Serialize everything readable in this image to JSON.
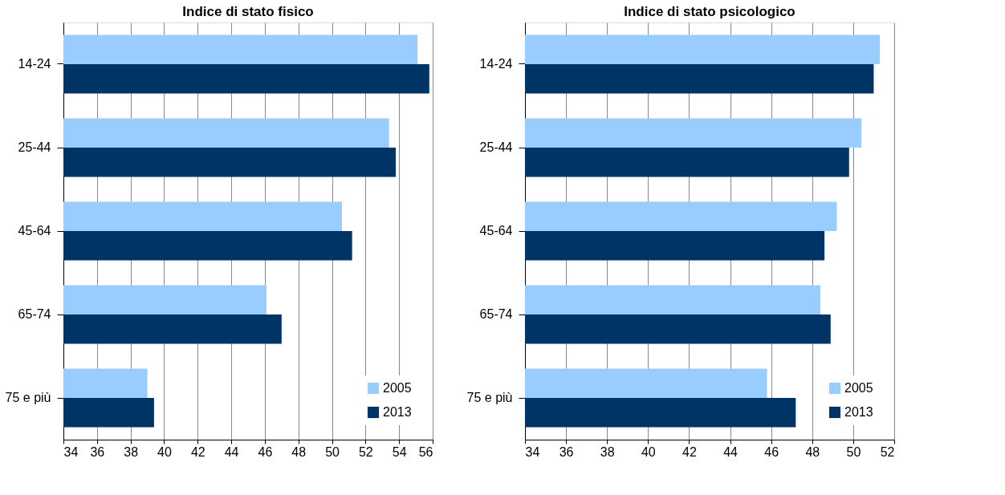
{
  "chart_data": [
    {
      "type": "bar",
      "orientation": "horizontal",
      "title": "Indice di stato fisico",
      "categories": [
        "14-24",
        "25-44",
        "45-64",
        "65-74",
        "75 e più"
      ],
      "series": [
        {
          "name": "2005",
          "color": "#99ccff",
          "values": [
            55.1,
            53.4,
            50.6,
            46.1,
            39.0
          ]
        },
        {
          "name": "2013",
          "color": "#003366",
          "values": [
            55.8,
            53.8,
            51.2,
            47.0,
            39.4
          ]
        }
      ],
      "xlim": [
        34,
        56
      ],
      "xticks": [
        34,
        36,
        38,
        40,
        42,
        44,
        46,
        48,
        50,
        52,
        54,
        56
      ],
      "grid": "x",
      "legend": "bottom right"
    },
    {
      "type": "bar",
      "orientation": "horizontal",
      "title": "Indice di stato psicologico",
      "categories": [
        "14-24",
        "25-44",
        "45-64",
        "65-74",
        "75 e più"
      ],
      "series": [
        {
          "name": "2005",
          "color": "#99ccff",
          "values": [
            51.3,
            50.4,
            49.2,
            48.4,
            45.8
          ]
        },
        {
          "name": "2013",
          "color": "#003366",
          "values": [
            51.0,
            49.8,
            48.6,
            48.9,
            47.2
          ]
        }
      ],
      "xlim": [
        34,
        52
      ],
      "xticks": [
        34,
        36,
        38,
        40,
        42,
        44,
        46,
        48,
        50,
        52
      ],
      "grid": "x",
      "legend": "bottom right"
    }
  ]
}
